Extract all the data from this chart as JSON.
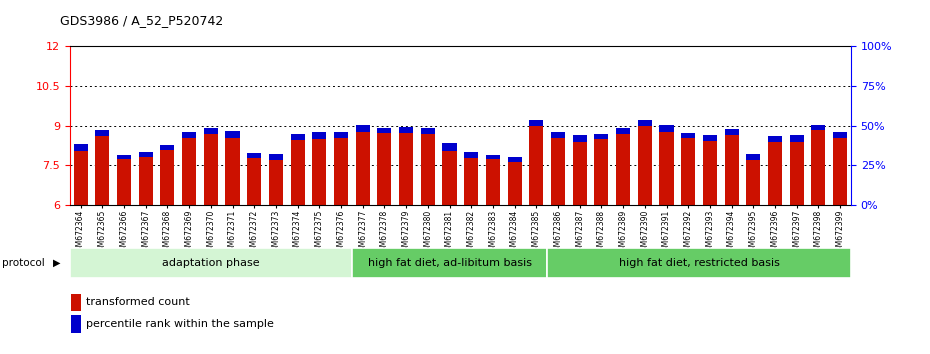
{
  "title": "GDS3986 / A_52_P520742",
  "samples": [
    "GSM672364",
    "GSM672365",
    "GSM672366",
    "GSM672367",
    "GSM672368",
    "GSM672369",
    "GSM672370",
    "GSM672371",
    "GSM672372",
    "GSM672373",
    "GSM672374",
    "GSM672375",
    "GSM672376",
    "GSM672377",
    "GSM672378",
    "GSM672379",
    "GSM672380",
    "GSM672381",
    "GSM672382",
    "GSM672383",
    "GSM672384",
    "GSM672385",
    "GSM672386",
    "GSM672387",
    "GSM672388",
    "GSM672389",
    "GSM672390",
    "GSM672391",
    "GSM672392",
    "GSM672393",
    "GSM672394",
    "GSM672395",
    "GSM672396",
    "GSM672397",
    "GSM672398",
    "GSM672399"
  ],
  "red_values": [
    8.05,
    8.62,
    7.75,
    7.82,
    8.08,
    8.52,
    8.7,
    8.55,
    7.78,
    7.72,
    8.45,
    8.5,
    8.55,
    8.78,
    8.72,
    8.73,
    8.68,
    8.03,
    7.8,
    7.75,
    7.65,
    8.98,
    8.55,
    8.38,
    8.48,
    8.7,
    8.98,
    8.78,
    8.52,
    8.42,
    8.65,
    7.72,
    8.38,
    8.38,
    8.82,
    8.55
  ],
  "blue_values": [
    0.25,
    0.22,
    0.15,
    0.2,
    0.2,
    0.25,
    0.22,
    0.25,
    0.18,
    0.2,
    0.22,
    0.25,
    0.22,
    0.25,
    0.2,
    0.22,
    0.25,
    0.3,
    0.2,
    0.15,
    0.18,
    0.25,
    0.22,
    0.25,
    0.22,
    0.2,
    0.22,
    0.25,
    0.2,
    0.22,
    0.22,
    0.2,
    0.22,
    0.25,
    0.2,
    0.22
  ],
  "ylim_left": [
    6,
    12
  ],
  "yticks_left": [
    6,
    7.5,
    9,
    10.5,
    12
  ],
  "yticks_right": [
    0,
    25,
    50,
    75,
    100
  ],
  "group_boundaries": [
    0,
    13,
    22,
    36
  ],
  "group_colors": [
    "#d4f5d4",
    "#66cc66",
    "#66cc66"
  ],
  "group_labels": [
    "adaptation phase",
    "high fat diet, ad-libitum basis",
    "high fat diet, restricted basis"
  ],
  "bar_color_red": "#cc1100",
  "bar_color_blue": "#0000cc",
  "bar_width": 0.65,
  "protocol_label": "protocol",
  "legend_red": "transformed count",
  "legend_blue": "percentile rank within the sample",
  "title_fontsize": 9,
  "axis_fontsize": 8,
  "xlabel_fontsize": 5.5,
  "group_fontsize": 8,
  "legend_fontsize": 8
}
